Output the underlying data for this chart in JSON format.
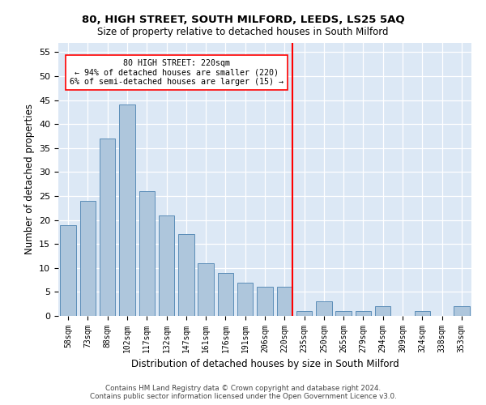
{
  "title": "80, HIGH STREET, SOUTH MILFORD, LEEDS, LS25 5AQ",
  "subtitle": "Size of property relative to detached houses in South Milford",
  "xlabel": "Distribution of detached houses by size in South Milford",
  "ylabel": "Number of detached properties",
  "bar_labels": [
    "58sqm",
    "73sqm",
    "88sqm",
    "102sqm",
    "117sqm",
    "132sqm",
    "147sqm",
    "161sqm",
    "176sqm",
    "191sqm",
    "206sqm",
    "220sqm",
    "235sqm",
    "250sqm",
    "265sqm",
    "279sqm",
    "294sqm",
    "309sqm",
    "324sqm",
    "338sqm",
    "353sqm"
  ],
  "bar_values": [
    19,
    24,
    37,
    44,
    26,
    21,
    17,
    11,
    9,
    7,
    6,
    6,
    1,
    3,
    1,
    1,
    2,
    0,
    1,
    0,
    2
  ],
  "bar_color": "#aec6dc",
  "bar_edge_color": "#5b8db8",
  "annotation_title": "80 HIGH STREET: 220sqm",
  "annotation_line1": "← 94% of detached houses are smaller (220)",
  "annotation_line2": "6% of semi-detached houses are larger (15) →",
  "bg_color": "#dce8f5",
  "ylim": [
    0,
    57
  ],
  "yticks": [
    0,
    5,
    10,
    15,
    20,
    25,
    30,
    35,
    40,
    45,
    50,
    55
  ],
  "vline_index": 11,
  "footer1": "Contains HM Land Registry data © Crown copyright and database right 2024.",
  "footer2": "Contains public sector information licensed under the Open Government Licence v3.0."
}
